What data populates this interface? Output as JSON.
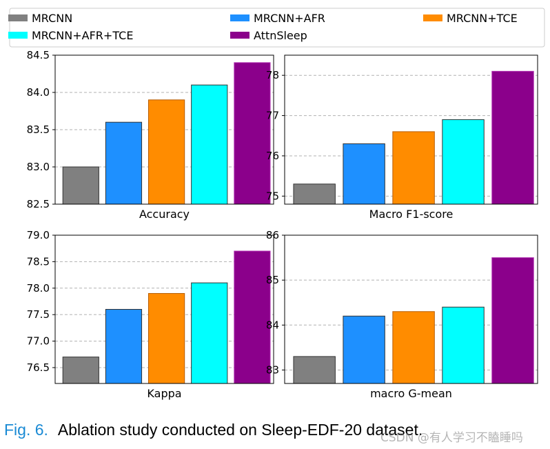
{
  "legend": {
    "position": "top",
    "items": [
      {
        "label": "MRCNN",
        "color": "#808080"
      },
      {
        "label": "MRCNN+AFR",
        "color": "#1e90ff"
      },
      {
        "label": "MRCNN+TCE",
        "color": "#ff8c00"
      },
      {
        "label": "MRCNN+AFR+TCE",
        "color": "#00ffff"
      },
      {
        "label": "AttnSleep",
        "color": "#8b008b"
      }
    ]
  },
  "chart_data": [
    {
      "type": "bar",
      "xlabel": "Accuracy",
      "categories": [
        "MRCNN",
        "MRCNN+AFR",
        "MRCNN+TCE",
        "MRCNN+AFR+TCE",
        "AttnSleep"
      ],
      "values": [
        83.0,
        83.6,
        83.9,
        84.1,
        84.4
      ],
      "ylim": [
        82.5,
        84.5
      ],
      "yticks": [
        "82.5",
        "83.0",
        "83.5",
        "84.0",
        "84.5"
      ],
      "grid": true
    },
    {
      "type": "bar",
      "xlabel": "Macro F1-score",
      "categories": [
        "MRCNN",
        "MRCNN+AFR",
        "MRCNN+TCE",
        "MRCNN+AFR+TCE",
        "AttnSleep"
      ],
      "values": [
        75.3,
        76.3,
        76.6,
        76.9,
        78.1
      ],
      "ylim": [
        74.8,
        78.5
      ],
      "yticks": [
        "75",
        "76",
        "77",
        "78"
      ],
      "grid": true
    },
    {
      "type": "bar",
      "xlabel": "Kappa",
      "categories": [
        "MRCNN",
        "MRCNN+AFR",
        "MRCNN+TCE",
        "MRCNN+AFR+TCE",
        "AttnSleep"
      ],
      "values": [
        76.7,
        77.6,
        77.9,
        78.1,
        78.7
      ],
      "ylim": [
        76.2,
        79.0
      ],
      "yticks": [
        "76.5",
        "77.0",
        "77.5",
        "78.0",
        "78.5",
        "79.0"
      ],
      "grid": true
    },
    {
      "type": "bar",
      "xlabel": "macro G-mean",
      "categories": [
        "MRCNN",
        "MRCNN+AFR",
        "MRCNN+TCE",
        "MRCNN+AFR+TCE",
        "AttnSleep"
      ],
      "values": [
        83.3,
        84.2,
        84.3,
        84.4,
        85.5
      ],
      "ylim": [
        82.7,
        86.0
      ],
      "yticks": [
        "83",
        "84",
        "85",
        "86"
      ],
      "grid": true
    }
  ],
  "caption": {
    "fig": "Fig. 6.",
    "text": "Ablation study conducted on Sleep-EDF-20 dataset."
  },
  "watermark": "CSDN @有人学习不瞌睡吗"
}
